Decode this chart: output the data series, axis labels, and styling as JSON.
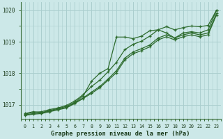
{
  "title": "Graphe pression niveau de la mer (hPa)",
  "bg_color": "#cce8e8",
  "grid_color": "#aacece",
  "line_color": "#2d6b2d",
  "x_ticks": [
    0,
    1,
    2,
    3,
    4,
    5,
    6,
    7,
    8,
    9,
    10,
    11,
    12,
    13,
    14,
    15,
    16,
    17,
    18,
    19,
    20,
    21,
    22,
    23
  ],
  "ylim": [
    1016.55,
    1020.25
  ],
  "yticks": [
    1017,
    1018,
    1019,
    1020
  ],
  "series": [
    [
      1016.72,
      1016.78,
      1016.75,
      1016.82,
      1016.88,
      1016.95,
      1017.08,
      1017.28,
      1017.75,
      1018.0,
      1018.15,
      1019.15,
      1019.15,
      1019.1,
      1019.18,
      1019.35,
      1019.38,
      1019.28,
      1019.12,
      1019.28,
      1019.32,
      1019.28,
      1019.38,
      1020.0
    ],
    [
      1016.7,
      1016.76,
      1016.78,
      1016.85,
      1016.9,
      1016.98,
      1017.12,
      1017.32,
      1017.58,
      1017.78,
      1018.05,
      1018.35,
      1018.75,
      1018.92,
      1019.02,
      1019.18,
      1019.38,
      1019.48,
      1019.38,
      1019.45,
      1019.5,
      1019.48,
      1019.52,
      1020.0
    ],
    [
      1016.68,
      1016.72,
      1016.74,
      1016.8,
      1016.86,
      1016.92,
      1017.06,
      1017.22,
      1017.4,
      1017.58,
      1017.82,
      1018.08,
      1018.48,
      1018.68,
      1018.78,
      1018.9,
      1019.12,
      1019.22,
      1019.12,
      1019.22,
      1019.28,
      1019.22,
      1019.28,
      1019.9
    ],
    [
      1016.66,
      1016.7,
      1016.72,
      1016.78,
      1016.84,
      1016.9,
      1017.04,
      1017.2,
      1017.36,
      1017.54,
      1017.78,
      1018.02,
      1018.42,
      1018.62,
      1018.72,
      1018.84,
      1019.06,
      1019.16,
      1019.06,
      1019.16,
      1019.22,
      1019.16,
      1019.22,
      1019.85
    ]
  ]
}
